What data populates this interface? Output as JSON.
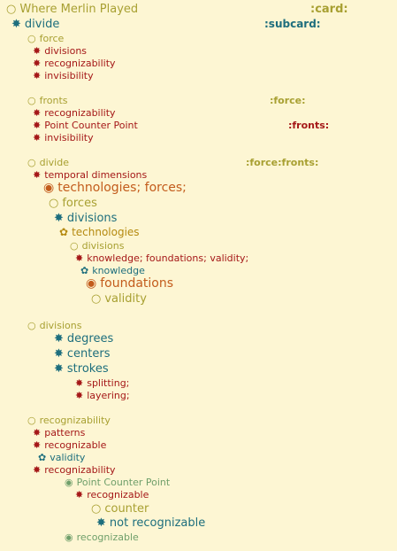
{
  "colors": {
    "background": "#fdf6d3",
    "olive": "#a8a032",
    "teal": "#1d6e7d",
    "red": "#a51818",
    "orange": "#c35c1c",
    "gold": "#b58a10",
    "green": "#6f9f6a"
  },
  "doc": {
    "title": "Where Merlin Played",
    "title_tag": ":card:",
    "subcard": "divide",
    "subcard_tag": ":subcard:"
  },
  "sec_force": {
    "heading": "force",
    "items": [
      "divisions",
      "recognizability",
      "invisibility"
    ]
  },
  "sec_fronts": {
    "heading": "fronts",
    "heading_tag": ":force:",
    "items": [
      "recognizability",
      "Point Counter Point",
      "invisibility"
    ],
    "item_tag": ":fronts:"
  },
  "sec_divide": {
    "heading": "divide",
    "heading_tag": ":force:fronts:",
    "l1": "temporal dimensions",
    "l2": "technologies; forces;",
    "l3": "forces",
    "l4": "divisions",
    "l5": "technologies",
    "l6": "divisions",
    "l7": "knowledge; foundations; validity;",
    "l8": "knowledge",
    "l9": "foundations",
    "l10": "validity"
  },
  "sec_divisions": {
    "heading": "divisions",
    "items": [
      "degrees",
      "centers",
      "strokes"
    ],
    "sub": [
      "splitting;",
      "layering;"
    ]
  },
  "sec_recog": {
    "heading": "recognizability",
    "l1": "patterns",
    "l2": "recognizable",
    "l3": "validity",
    "l4": "recognizability",
    "l5": "Point Counter Point",
    "l6": "recognizable",
    "l7": "counter",
    "l8": "not recognizable",
    "l9": "recognizable"
  },
  "icons": {
    "open_circle": "circle-outline-icon",
    "star": "asterisk-star-icon",
    "flower": "flower-icon",
    "bullseye": "bullseye-icon"
  }
}
